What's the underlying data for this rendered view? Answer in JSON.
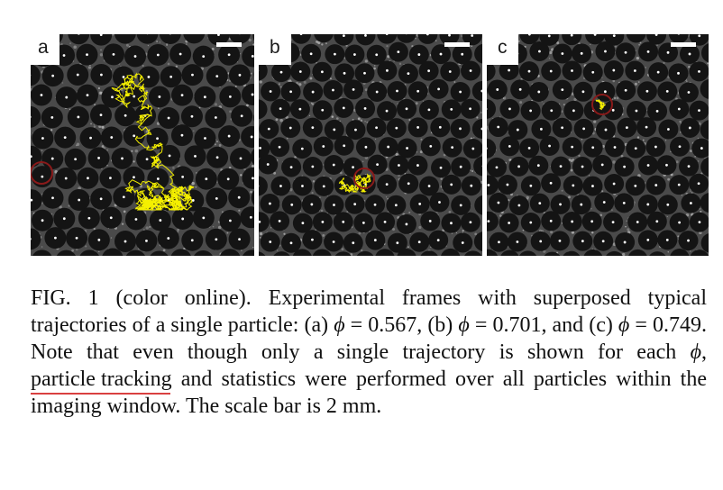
{
  "figure": {
    "panels": [
      {
        "id": "a",
        "label": "a",
        "phi": "0.567"
      },
      {
        "id": "b",
        "label": "b",
        "phi": "0.701"
      },
      {
        "id": "c",
        "label": "c",
        "phi": "0.749"
      }
    ]
  },
  "caption": {
    "part1": "FIG. 1 (color online).  Experimental frames with superposed typical trajectories of a single particle: (a)  ",
    "phi_symbol": "ϕ",
    "part2": " = 0.567, (b) ",
    "part3": " = 0.701, and (c) ",
    "part4": " = 0.749. Note that even though only a single trajectory is shown for each ",
    "part5": ", ",
    "underlined": "particle tracking",
    "part6": " and statistics were performed over all particles within the imaging window. The scale bar is 2 mm."
  },
  "colors": {
    "trajectory": "#f5f000",
    "underline": "#d94040",
    "particle": "#141414",
    "background": "#4a4a4a"
  }
}
